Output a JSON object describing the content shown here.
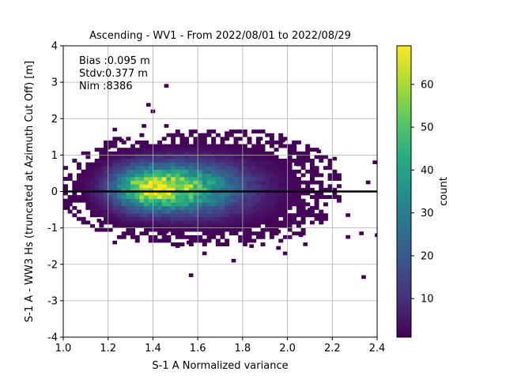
{
  "chart_data": {
    "type": "heatmap",
    "title": "Ascending - WV1 - From 2022/08/01 to 2022/08/29",
    "xlabel": "S-1 A Normalized variance",
    "ylabel": "S-1 A - WW3 Hs (truncated at Azimuth Cut Off) [m]",
    "xlim": [
      1.0,
      2.4
    ],
    "ylim": [
      -4,
      4
    ],
    "x_ticks": [
      "1.0",
      "1.2",
      "1.4",
      "1.6",
      "1.8",
      "2.0",
      "2.2",
      "2.4"
    ],
    "y_ticks": [
      "-4",
      "-3",
      "-2",
      "-1",
      "0",
      "1",
      "2",
      "3",
      "4"
    ],
    "grid": true,
    "annotations": [
      "Bias :0.095 m",
      "Stdv:0.377 m",
      "Nim :8386"
    ],
    "reference_line_y": 0,
    "colorbar": {
      "label": "count",
      "min": 1,
      "max": 69,
      "ticks": [
        "10",
        "20",
        "30",
        "40",
        "50",
        "60"
      ],
      "colormap": "viridis"
    },
    "density_model": {
      "peak_count": 69,
      "center_x": 1.4,
      "center_y": 0.1,
      "spread_x_low": 0.12,
      "spread_x_high": 0.24,
      "spread_y": 0.42
    },
    "outliers": [
      {
        "x": 1.45,
        "y": 2.9,
        "count": 1
      },
      {
        "x": 1.37,
        "y": 2.38,
        "count": 1
      },
      {
        "x": 1.39,
        "y": 2.2,
        "count": 1
      },
      {
        "x": 1.22,
        "y": 1.7,
        "count": 1
      },
      {
        "x": 1.35,
        "y": 1.8,
        "count": 1
      },
      {
        "x": 1.45,
        "y": 1.8,
        "count": 1
      },
      {
        "x": 1.19,
        "y": 1.2,
        "count": 1
      },
      {
        "x": 1.25,
        "y": 1.4,
        "count": 1
      },
      {
        "x": 1.72,
        "y": 1.6,
        "count": 1
      },
      {
        "x": 1.62,
        "y": 1.55,
        "count": 1
      },
      {
        "x": 1.87,
        "y": 1.45,
        "count": 1
      },
      {
        "x": 1.97,
        "y": 1.4,
        "count": 1
      },
      {
        "x": 2.02,
        "y": 1.3,
        "count": 1
      },
      {
        "x": 2.13,
        "y": 1.1,
        "count": 1
      },
      {
        "x": 2.2,
        "y": 0.9,
        "count": 1
      },
      {
        "x": 2.38,
        "y": 0.8,
        "count": 1
      },
      {
        "x": 2.35,
        "y": 0.25,
        "count": 1
      },
      {
        "x": 2.1,
        "y": 0.0,
        "count": 1
      },
      {
        "x": 2.03,
        "y": 0.75,
        "count": 1
      },
      {
        "x": 2.09,
        "y": -0.5,
        "count": 1
      },
      {
        "x": 2.26,
        "y": -0.65,
        "count": 1
      },
      {
        "x": 1.01,
        "y": -0.45,
        "count": 1
      },
      {
        "x": 1.12,
        "y": -0.65,
        "count": 1
      },
      {
        "x": 1.15,
        "y": -0.8,
        "count": 1
      },
      {
        "x": 1.22,
        "y": -1.4,
        "count": 1
      },
      {
        "x": 1.45,
        "y": -1.1,
        "count": 1
      },
      {
        "x": 1.5,
        "y": -1.5,
        "count": 1
      },
      {
        "x": 1.55,
        "y": -1.4,
        "count": 1
      },
      {
        "x": 1.62,
        "y": -1.7,
        "count": 1
      },
      {
        "x": 1.75,
        "y": -1.9,
        "count": 1
      },
      {
        "x": 1.83,
        "y": -1.5,
        "count": 1
      },
      {
        "x": 1.98,
        "y": -1.7,
        "count": 1
      },
      {
        "x": 1.95,
        "y": -1.55,
        "count": 1
      },
      {
        "x": 2.05,
        "y": -1.2,
        "count": 1
      },
      {
        "x": 2.07,
        "y": -1.45,
        "count": 1
      },
      {
        "x": 2.26,
        "y": -1.25,
        "count": 1
      },
      {
        "x": 2.32,
        "y": -1.15,
        "count": 1
      },
      {
        "x": 2.39,
        "y": -1.2,
        "count": 1
      },
      {
        "x": 1.56,
        "y": -2.3,
        "count": 1
      },
      {
        "x": 2.33,
        "y": -2.35,
        "count": 1
      },
      {
        "x": 1.95,
        "y": -1.1,
        "count": 1
      },
      {
        "x": 1.9,
        "y": -0.85,
        "count": 1
      }
    ]
  }
}
